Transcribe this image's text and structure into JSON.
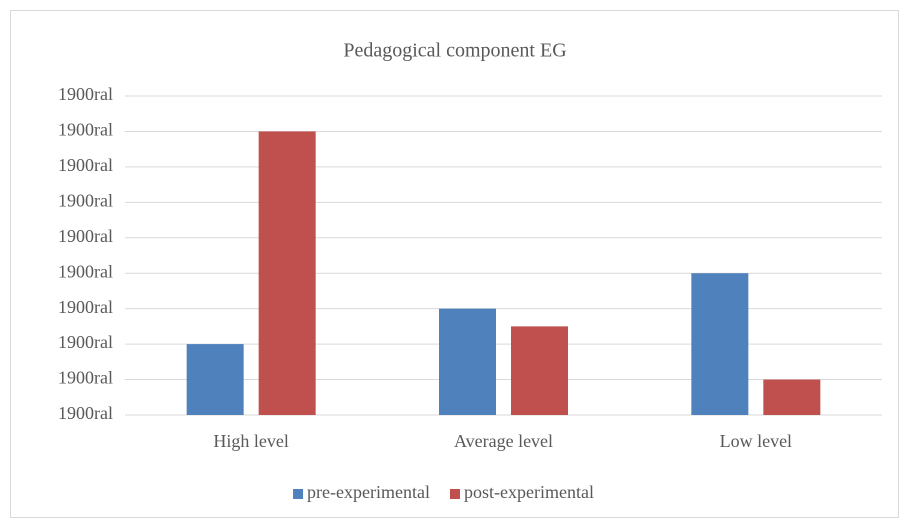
{
  "chart_data": {
    "type": "bar",
    "title": "Pedagogical component EG",
    "categories": [
      "High level",
      "Average level",
      "Low level"
    ],
    "series": [
      {
        "name": "pre-experimental",
        "color": "#4f81bd",
        "values": [
          2,
          3,
          4
        ]
      },
      {
        "name": "post-experimental",
        "color": "#c0504d",
        "values": [
          8,
          2.5,
          1
        ]
      }
    ],
    "ylim": [
      0,
      9
    ],
    "yticks": [
      {
        "value": 0,
        "label": "1900ral"
      },
      {
        "value": 1,
        "label": "1900ral"
      },
      {
        "value": 2,
        "label": "1900ral"
      },
      {
        "value": 3,
        "label": "1900ral"
      },
      {
        "value": 4,
        "label": "1900ral"
      },
      {
        "value": 5,
        "label": "1900ral"
      },
      {
        "value": 6,
        "label": "1900ral"
      },
      {
        "value": 7,
        "label": "1900ral"
      },
      {
        "value": 8,
        "label": "1900ral"
      },
      {
        "value": 9,
        "label": "1900ral"
      }
    ],
    "grid": true,
    "legend": "bottom"
  }
}
